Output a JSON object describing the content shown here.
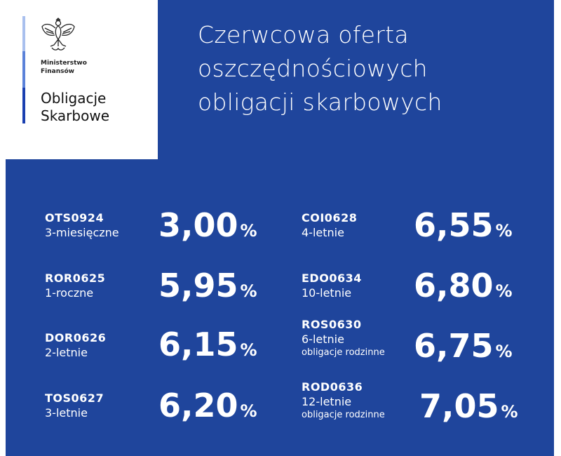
{
  "logo": {
    "ministry_line1": "Ministerstwo",
    "ministry_line2": "Finansów",
    "brand_line1": "Obligacje",
    "brand_line2": "Skarbowe",
    "emblem_icon": "polish-eagle-emblem"
  },
  "headline": {
    "line1": "Czerwcowa oferta",
    "line2": "oszczędnościowych",
    "line3": "obligacji skarbowych"
  },
  "colors": {
    "background_blue": "#1f459c",
    "text": "#ffffff"
  },
  "bonds": [
    {
      "code": "OTS0924",
      "term": "3-miesięczne",
      "note": "",
      "rate": "3,00",
      "unit": "%"
    },
    {
      "code": "ROR0625",
      "term": "1-roczne",
      "note": "",
      "rate": "5,95",
      "unit": "%"
    },
    {
      "code": "DOR0626",
      "term": "2-letnie",
      "note": "",
      "rate": "6,15",
      "unit": "%"
    },
    {
      "code": "TOS0627",
      "term": "3-letnie",
      "note": "",
      "rate": "6,20",
      "unit": "%"
    },
    {
      "code": "COI0628",
      "term": "4-letnie",
      "note": "",
      "rate": "6,55",
      "unit": "%"
    },
    {
      "code": "EDO0634",
      "term": "10-letnie",
      "note": "",
      "rate": "6,80",
      "unit": "%"
    },
    {
      "code": "ROS0630",
      "term": "6-letnie",
      "note": "obligacje rodzinne",
      "rate": "6,75",
      "unit": "%"
    },
    {
      "code": "ROD0636",
      "term": "12-letnie",
      "note": "obligacje rodzinne",
      "rate": "7,05",
      "unit": "%"
    }
  ]
}
